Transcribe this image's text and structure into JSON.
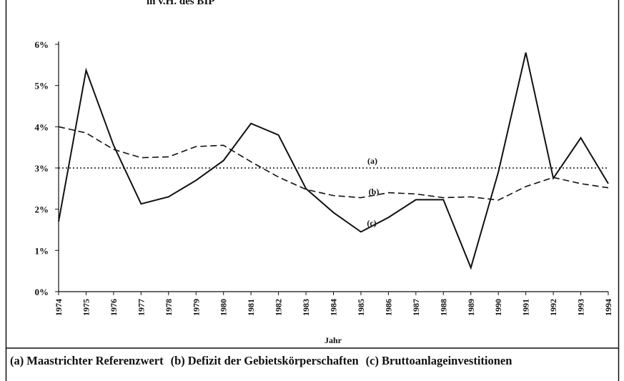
{
  "chart_data": {
    "type": "line",
    "title": "in v.H. des BIP",
    "x_label": "Jahr",
    "categories": [
      "1974",
      "1975",
      "1976",
      "1977",
      "1978",
      "1979",
      "1980",
      "1981",
      "1982",
      "1983",
      "1984",
      "1985",
      "1986",
      "1987",
      "1988",
      "1989",
      "1990",
      "1991",
      "1992",
      "1993",
      "1994"
    ],
    "series": [
      {
        "name": "Maastrichter Referenzwert",
        "label": "(a)",
        "color": "#111111",
        "style": "dotted",
        "values": [
          3,
          3,
          3,
          3,
          3,
          3,
          3,
          3,
          3,
          3,
          3,
          3,
          3,
          3,
          3,
          3,
          3,
          3,
          3,
          3,
          3
        ]
      },
      {
        "name": "Defizit der Gebietskörperschaften",
        "label": "(b)",
        "color": "#111111",
        "style": "dashed",
        "values": [
          4.0,
          3.85,
          3.45,
          3.25,
          3.27,
          3.52,
          3.55,
          3.15,
          2.78,
          2.48,
          2.33,
          2.28,
          2.4,
          2.37,
          2.28,
          2.3,
          2.22,
          2.55,
          2.77,
          2.62,
          2.52
        ]
      },
      {
        "name": "Bruttoanlageinvestitionen",
        "label": "(c)",
        "color": "#111111",
        "style": "solid",
        "values": [
          1.7,
          5.37,
          3.55,
          2.13,
          2.3,
          2.7,
          3.18,
          4.08,
          3.8,
          2.5,
          1.92,
          1.45,
          1.8,
          2.23,
          2.23,
          0.58,
          2.9,
          5.8,
          2.75,
          3.73,
          2.62
        ]
      }
    ],
    "ylim": [
      0,
      6
    ],
    "yticks": [
      {
        "value": 0,
        "label": "0%"
      },
      {
        "value": 1,
        "label": "1%"
      },
      {
        "value": 2,
        "label": "2%"
      },
      {
        "value": 3,
        "label": "3%"
      },
      {
        "value": 4,
        "label": "4%"
      },
      {
        "value": 5,
        "label": "5%"
      },
      {
        "value": 6,
        "label": "6%"
      }
    ]
  }
}
